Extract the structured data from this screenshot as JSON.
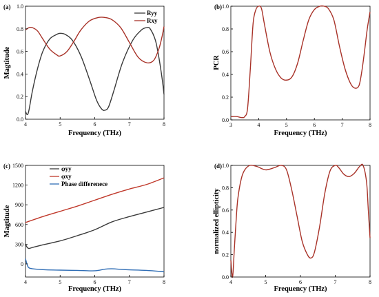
{
  "chart_data": [
    {
      "panel": "(a)",
      "type": "line",
      "xlabel": "Frequency (THz)",
      "ylabel": "Magtitude",
      "xlim": [
        4,
        8
      ],
      "ylim": [
        0,
        1.0
      ],
      "xticks": [
        "4",
        "5",
        "6",
        "7",
        "8"
      ],
      "yticks": [
        "0.0",
        "0.2",
        "0.4",
        "0.6",
        "0.8",
        "1.0"
      ],
      "legend": "top-right",
      "grid": false,
      "series": [
        {
          "name": "Ryy",
          "color": "#3a3a3a",
          "x": [
            4.0,
            4.05,
            4.1,
            4.2,
            4.35,
            4.5,
            4.7,
            4.9,
            5.0,
            5.15,
            5.35,
            5.6,
            5.85,
            6.05,
            6.2,
            6.3,
            6.4,
            6.55,
            6.8,
            7.1,
            7.35,
            7.5,
            7.6,
            7.75,
            7.85,
            7.95,
            8.0
          ],
          "y": [
            0.07,
            0.04,
            0.08,
            0.25,
            0.45,
            0.6,
            0.71,
            0.75,
            0.76,
            0.75,
            0.7,
            0.56,
            0.35,
            0.17,
            0.09,
            0.08,
            0.11,
            0.25,
            0.5,
            0.7,
            0.79,
            0.81,
            0.8,
            0.7,
            0.55,
            0.35,
            0.22
          ]
        },
        {
          "name": "Rxy",
          "color": "#a83228",
          "x": [
            4.0,
            4.1,
            4.2,
            4.35,
            4.5,
            4.7,
            4.9,
            5.0,
            5.2,
            5.4,
            5.6,
            5.85,
            6.1,
            6.3,
            6.5,
            6.75,
            7.0,
            7.25,
            7.5,
            7.7,
            7.85,
            7.95,
            8.0
          ],
          "y": [
            0.79,
            0.81,
            0.81,
            0.78,
            0.71,
            0.62,
            0.57,
            0.56,
            0.6,
            0.69,
            0.79,
            0.87,
            0.9,
            0.9,
            0.88,
            0.81,
            0.68,
            0.55,
            0.5,
            0.52,
            0.62,
            0.74,
            0.82
          ]
        }
      ]
    },
    {
      "panel": "(b)",
      "type": "line",
      "xlabel": "Frequency (THz)",
      "ylabel": "PCR",
      "xlim": [
        3,
        8
      ],
      "ylim": [
        0,
        1.0
      ],
      "xticks": [
        "3",
        "4",
        "5",
        "6",
        "7",
        "8"
      ],
      "yticks": [
        "0.0",
        "0.2",
        "0.4",
        "0.6",
        "0.8",
        "1.0"
      ],
      "grid": false,
      "series": [
        {
          "name": "",
          "color": "#a83228",
          "x": [
            3.0,
            3.2,
            3.4,
            3.5,
            3.6,
            3.7,
            3.8,
            3.9,
            4.0,
            4.1,
            4.2,
            4.4,
            4.6,
            4.8,
            5.0,
            5.2,
            5.4,
            5.6,
            5.8,
            6.0,
            6.2,
            6.35,
            6.5,
            6.7,
            6.9,
            7.1,
            7.3,
            7.45,
            7.6,
            7.7,
            7.8,
            7.9,
            8.0
          ],
          "y": [
            0.03,
            0.03,
            0.02,
            0.03,
            0.1,
            0.45,
            0.85,
            0.97,
            1.0,
            0.98,
            0.85,
            0.6,
            0.45,
            0.37,
            0.35,
            0.38,
            0.5,
            0.7,
            0.88,
            0.97,
            1.0,
            1.0,
            0.98,
            0.88,
            0.65,
            0.45,
            0.32,
            0.28,
            0.3,
            0.42,
            0.6,
            0.8,
            0.95
          ]
        }
      ]
    },
    {
      "panel": "(c)",
      "type": "line",
      "xlabel": "Frequency (THz)",
      "ylabel": "Magtitude",
      "xlim": [
        4,
        8
      ],
      "ylim": [
        -200,
        1500
      ],
      "xticks": [
        "4",
        "5",
        "6",
        "7",
        "8"
      ],
      "yticks": [
        "0",
        "300",
        "600",
        "900",
        "1200",
        "1500"
      ],
      "legend": "top-left",
      "grid": false,
      "series": [
        {
          "name": "φyy",
          "color": "#3a3a3a",
          "x": [
            4.0,
            4.05,
            4.1,
            4.2,
            4.5,
            5.0,
            5.5,
            6.0,
            6.5,
            7.0,
            7.5,
            8.0
          ],
          "y": [
            300,
            250,
            235,
            250,
            290,
            350,
            430,
            520,
            640,
            720,
            790,
            860
          ]
        },
        {
          "name": "φxy",
          "color": "#c0392b",
          "x": [
            4.0,
            4.5,
            5.0,
            5.5,
            6.0,
            6.5,
            7.0,
            7.5,
            8.0
          ],
          "y": [
            630,
            720,
            800,
            880,
            970,
            1060,
            1140,
            1210,
            1310
          ]
        },
        {
          "name": "Phase differenece",
          "color": "#2f6db5",
          "x": [
            4.0,
            4.03,
            4.08,
            4.15,
            4.3,
            4.6,
            5.0,
            5.5,
            6.0,
            6.3,
            6.5,
            6.8,
            7.0,
            7.5,
            8.0
          ],
          "y": [
            80,
            20,
            -50,
            -70,
            -80,
            -90,
            -95,
            -100,
            -105,
            -80,
            -75,
            -85,
            -90,
            -100,
            -120
          ]
        }
      ]
    },
    {
      "panel": "(d)",
      "type": "line",
      "xlabel": "Frequency (THz)",
      "ylabel": "normalized ellipticity",
      "xlim": [
        4,
        8
      ],
      "ylim": [
        0,
        1.0
      ],
      "xticks": [
        "4",
        "5",
        "6",
        "7",
        "8"
      ],
      "yticks": [
        "0.0",
        "0.2",
        "0.4",
        "0.6",
        "0.8",
        "1.0"
      ],
      "grid": false,
      "series": [
        {
          "name": "",
          "color": "#a83228",
          "x": [
            4.0,
            4.05,
            4.1,
            4.15,
            4.2,
            4.3,
            4.4,
            4.55,
            4.75,
            5.0,
            5.25,
            5.45,
            5.6,
            5.75,
            5.9,
            6.05,
            6.2,
            6.3,
            6.4,
            6.55,
            6.7,
            6.85,
            7.0,
            7.1,
            7.25,
            7.4,
            7.55,
            7.7,
            7.8,
            7.9,
            7.95,
            8.0
          ],
          "y": [
            0.15,
            0.0,
            0.25,
            0.5,
            0.7,
            0.88,
            0.96,
            1.0,
            0.99,
            0.96,
            0.98,
            1.0,
            0.96,
            0.78,
            0.55,
            0.32,
            0.2,
            0.17,
            0.22,
            0.45,
            0.75,
            0.95,
            1.0,
            0.98,
            0.92,
            0.9,
            0.93,
            0.99,
            1.0,
            0.85,
            0.6,
            0.35
          ]
        }
      ]
    }
  ]
}
